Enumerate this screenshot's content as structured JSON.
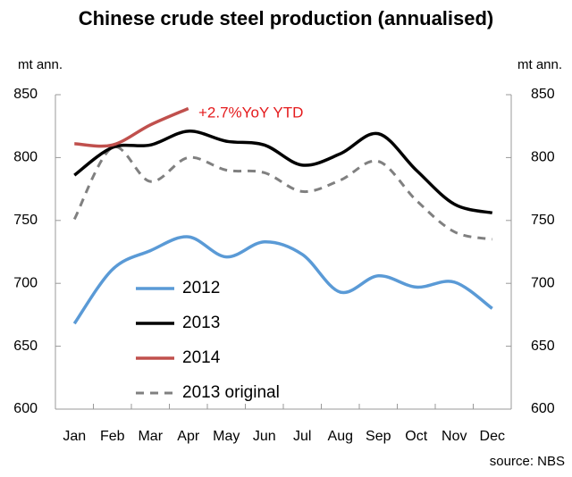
{
  "chart_data": {
    "type": "line",
    "title": "Chinese crude steel production (annualised)",
    "y_label": "mt ann.",
    "y2_label": "mt ann.",
    "annotation": "+2.7%YoY YTD",
    "source": "source: NBS",
    "categories": [
      "Jan",
      "Feb",
      "Mar",
      "Apr",
      "May",
      "Jun",
      "Jul",
      "Aug",
      "Sep",
      "Oct",
      "Nov",
      "Dec"
    ],
    "series": [
      {
        "name": "2012",
        "color": "#5a9ad6",
        "dash": false,
        "values": [
          668,
          711,
          726,
          737,
          721,
          733,
          723,
          693,
          706,
          697,
          701,
          680
        ]
      },
      {
        "name": "2013",
        "color": "#000000",
        "dash": false,
        "values": [
          786,
          808,
          810,
          821,
          813,
          810,
          794,
          803,
          819,
          790,
          763,
          756
        ]
      },
      {
        "name": "2014",
        "color": "#c0504d",
        "dash": false,
        "values": [
          811,
          810,
          826,
          839,
          null,
          null,
          null,
          null,
          null,
          null,
          null,
          null
        ]
      },
      {
        "name": "2013 original",
        "color": "#808080",
        "dash": true,
        "values": [
          751,
          808,
          781,
          800,
          790,
          788,
          773,
          782,
          797,
          766,
          741,
          735
        ]
      }
    ],
    "ylim": [
      600,
      850
    ],
    "yticks": [
      600,
      650,
      700,
      750,
      800,
      850
    ],
    "y2lim": [
      600,
      850
    ],
    "y2ticks": [
      600,
      650,
      700,
      750,
      800,
      850
    ],
    "grid": false
  }
}
